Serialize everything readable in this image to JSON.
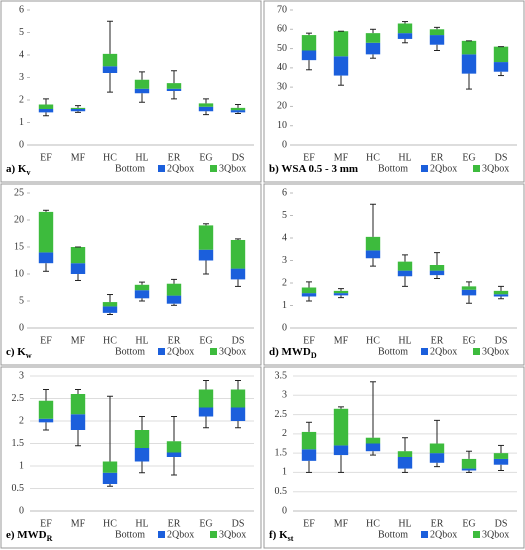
{
  "chart_data": [
    {
      "type": "bar",
      "stacked": true,
      "grid": false,
      "label_main": "a) K",
      "label_sub": "v",
      "categories": [
        "EF",
        "MF",
        "HC",
        "HL",
        "ER",
        "EG",
        "DS"
      ],
      "series": [
        {
          "name": "Bottom",
          "color": "none",
          "values": [
            1.45,
            1.5,
            3.2,
            2.3,
            2.4,
            1.5,
            1.45
          ]
        },
        {
          "name": "2Qbox",
          "color": "#1b5fdc",
          "values": [
            0.15,
            0.1,
            0.3,
            0.2,
            0.1,
            0.2,
            0.1
          ]
        },
        {
          "name": "3Qbox",
          "color": "#3dbb3d",
          "values": [
            0.2,
            0.05,
            0.55,
            0.4,
            0.25,
            0.15,
            0.1
          ]
        }
      ],
      "whisker_min": [
        1.3,
        1.45,
        2.35,
        1.9,
        2.05,
        1.35,
        1.4
      ],
      "whisker_max": [
        2.05,
        1.75,
        5.5,
        3.25,
        3.3,
        2.05,
        1.8
      ],
      "ylim": [
        0,
        6
      ],
      "yticks": [
        0,
        1,
        2,
        3,
        4,
        5,
        6
      ]
    },
    {
      "type": "bar",
      "stacked": true,
      "grid": false,
      "label_main": "b) WSA 0.5 - 3 mm",
      "categories": [
        "EF",
        "MF",
        "HC",
        "HL",
        "ER",
        "EG",
        "DS"
      ],
      "series": [
        {
          "name": "Bottom",
          "color": "none",
          "values": [
            44,
            36,
            47,
            55,
            52,
            37,
            38
          ]
        },
        {
          "name": "2Qbox",
          "color": "#1b5fdc",
          "values": [
            5,
            10,
            6,
            3,
            5,
            10,
            5
          ]
        },
        {
          "name": "3Qbox",
          "color": "#3dbb3d",
          "values": [
            8,
            13,
            5,
            5,
            3,
            7,
            8
          ]
        }
      ],
      "whisker_min": [
        39,
        31,
        45,
        53,
        49,
        29,
        36
      ],
      "whisker_max": [
        58,
        59,
        60,
        64,
        61,
        54,
        51
      ],
      "ylim": [
        0,
        70
      ],
      "yticks": [
        0,
        10,
        20,
        30,
        40,
        50,
        60,
        70
      ]
    },
    {
      "type": "bar",
      "stacked": true,
      "grid": false,
      "label_main": "c) K",
      "label_sub": "w",
      "categories": [
        "EF",
        "MF",
        "HC",
        "HL",
        "ER",
        "EG",
        "DS"
      ],
      "series": [
        {
          "name": "Bottom",
          "color": "none",
          "values": [
            12,
            10,
            2.8,
            5.5,
            4.5,
            12.5,
            9
          ]
        },
        {
          "name": "2Qbox",
          "color": "#1b5fdc",
          "values": [
            2,
            2,
            1.2,
            1.5,
            1.5,
            2,
            2
          ]
        },
        {
          "name": "3Qbox",
          "color": "#3dbb3d",
          "values": [
            7.5,
            3,
            0.8,
            1,
            2.2,
            4.5,
            5.3
          ]
        }
      ],
      "whisker_min": [
        10.5,
        8.8,
        2.5,
        5,
        4.2,
        10,
        7.7
      ],
      "whisker_max": [
        21.8,
        15,
        6.2,
        8.5,
        9,
        19.3,
        16.5
      ],
      "ylim": [
        0,
        25
      ],
      "yticks": [
        0,
        5,
        10,
        15,
        20,
        25
      ]
    },
    {
      "type": "bar",
      "stacked": true,
      "grid": false,
      "label_main": "d) MWD",
      "label_sub": "D",
      "categories": [
        "EF",
        "MF",
        "HC",
        "HL",
        "ER",
        "EG",
        "DS"
      ],
      "series": [
        {
          "name": "Bottom",
          "color": "none",
          "values": [
            1.4,
            1.45,
            3.1,
            2.3,
            2.35,
            1.45,
            1.4
          ]
        },
        {
          "name": "2Qbox",
          "color": "#1b5fdc",
          "values": [
            0.15,
            0.1,
            0.35,
            0.25,
            0.2,
            0.25,
            0.1
          ]
        },
        {
          "name": "3Qbox",
          "color": "#3dbb3d",
          "values": [
            0.25,
            0.1,
            0.6,
            0.4,
            0.25,
            0.15,
            0.15
          ]
        }
      ],
      "whisker_min": [
        1.2,
        1.35,
        2.75,
        1.85,
        2.2,
        1.1,
        1.3
      ],
      "whisker_max": [
        2.05,
        1.75,
        5.5,
        3.25,
        3.35,
        2.05,
        1.85
      ],
      "ylim": [
        0,
        6
      ],
      "yticks": [
        0,
        1,
        2,
        3,
        4,
        5,
        6
      ]
    },
    {
      "type": "bar",
      "stacked": true,
      "grid": true,
      "label_main": "e) MWD",
      "label_sub": "R",
      "categories": [
        "EF",
        "MF",
        "HC",
        "HL",
        "ER",
        "EG",
        "DS"
      ],
      "series": [
        {
          "name": "Bottom",
          "color": "none",
          "values": [
            1.97,
            1.8,
            0.6,
            1.1,
            1.2,
            2.1,
            2
          ]
        },
        {
          "name": "2Qbox",
          "color": "#1b5fdc",
          "values": [
            0.08,
            0.35,
            0.25,
            0.3,
            0.1,
            0.2,
            0.3
          ]
        },
        {
          "name": "3Qbox",
          "color": "#3dbb3d",
          "values": [
            0.4,
            0.45,
            0.25,
            0.4,
            0.25,
            0.4,
            0.4
          ]
        }
      ],
      "whisker_min": [
        1.8,
        1.45,
        0.55,
        0.85,
        0.8,
        1.85,
        1.85
      ],
      "whisker_max": [
        2.7,
        2.7,
        2.55,
        2.1,
        2.1,
        2.9,
        2.9
      ],
      "ylim": [
        0,
        3
      ],
      "yticks": [
        0,
        0.5,
        1,
        1.5,
        2,
        2.5,
        3
      ]
    },
    {
      "type": "bar",
      "stacked": true,
      "grid": true,
      "label_main": "f) K",
      "label_sub": "st",
      "categories": [
        "EF",
        "MF",
        "HC",
        "HL",
        "ER",
        "EG",
        "DS"
      ],
      "series": [
        {
          "name": "Bottom",
          "color": "none",
          "values": [
            1.3,
            1.45,
            1.55,
            1.1,
            1.25,
            1.05,
            1.2
          ]
        },
        {
          "name": "2Qbox",
          "color": "#1b5fdc",
          "values": [
            0.3,
            0.25,
            0.2,
            0.3,
            0.25,
            0.05,
            0.15
          ]
        },
        {
          "name": "3Qbox",
          "color": "#3dbb3d",
          "values": [
            0.45,
            0.95,
            0.15,
            0.15,
            0.25,
            0.25,
            0.15
          ]
        }
      ],
      "whisker_min": [
        1,
        1,
        1.45,
        1,
        1.15,
        1,
        1.05
      ],
      "whisker_max": [
        2.3,
        2.7,
        3.35,
        1.9,
        2.35,
        1.55,
        1.7
      ],
      "ylim": [
        0,
        3.5
      ],
      "yticks": [
        0,
        0.5,
        1,
        1.5,
        2,
        2.5,
        3,
        3.5
      ]
    }
  ]
}
